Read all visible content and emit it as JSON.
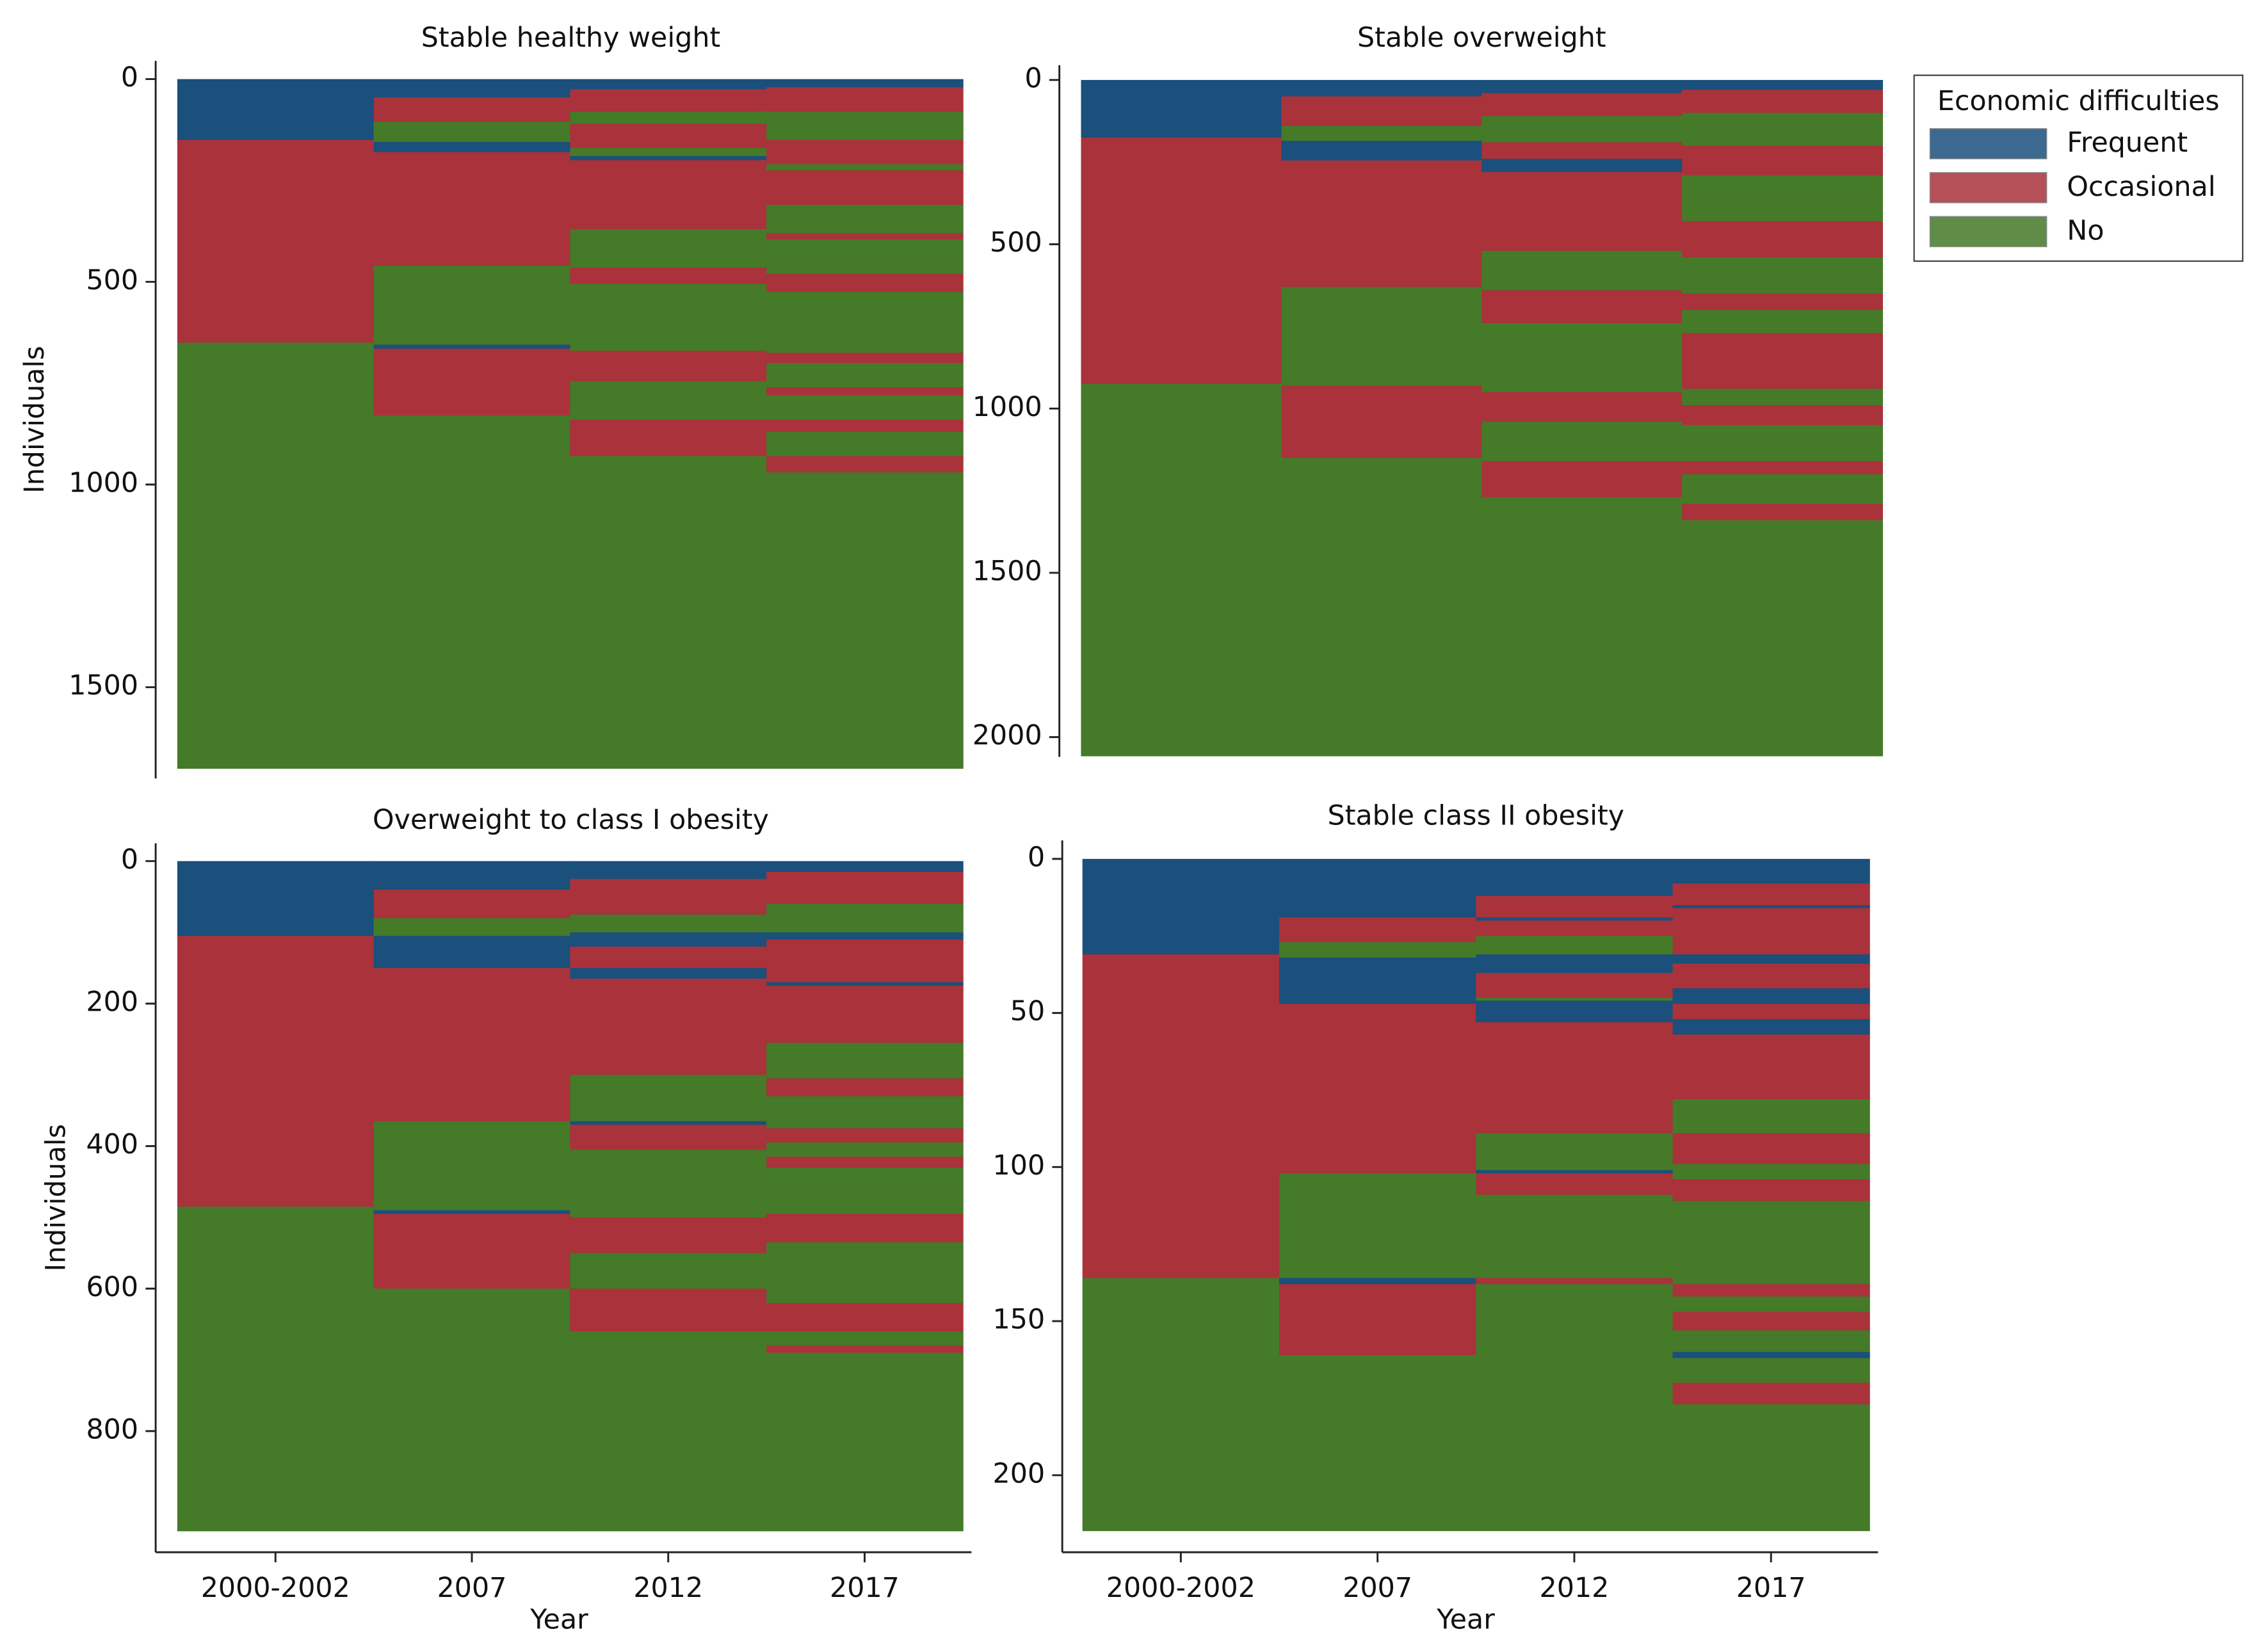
{
  "chart_data": {
    "type": "sequence-index",
    "legend_title": "Economic difficulties",
    "states": [
      {
        "name": "Frequent",
        "color": "#1b4f7c"
      },
      {
        "name": "Occasional",
        "color": "#a9323b"
      },
      {
        "name": "No",
        "color": "#447a28"
      }
    ],
    "panels": [
      {
        "title": "Stable healthy weight",
        "y_label": "Individuals",
        "ylim": [
          -45,
          1725
        ],
        "yticks": [
          0,
          500,
          1000,
          1500
        ],
        "columns": [
          {
            "states": [
              0,
              1,
              2
            ],
            "sizes": [
              150,
              500,
              1050
            ]
          },
          {
            "states": [
              0,
              1,
              2,
              0,
              1,
              2,
              0,
              1,
              2
            ],
            "sizes": [
              45,
              60,
              50,
              25,
              280,
              195,
              10,
              165,
              870
            ]
          },
          {
            "states": [
              0,
              1,
              2,
              1,
              2,
              0,
              1,
              2,
              1,
              2,
              1,
              2,
              1,
              2
            ],
            "sizes": [
              25,
              55,
              30,
              60,
              20,
              10,
              170,
              95,
              40,
              165,
              75,
              95,
              90,
              770
            ]
          },
          {
            "states": [
              0,
              1,
              2,
              1,
              2,
              1,
              2,
              1,
              2,
              1,
              2,
              1,
              2,
              1,
              2,
              1,
              2,
              1,
              2
            ],
            "sizes": [
              20,
              60,
              70,
              60,
              15,
              85,
              70,
              15,
              85,
              45,
              150,
              25,
              60,
              20,
              60,
              30,
              60,
              40,
              730
            ]
          }
        ]
      },
      {
        "title": "Stable overweight",
        "ylim": [
          -45,
          2060
        ],
        "yticks": [
          0,
          500,
          1000,
          1500,
          2000
        ],
        "columns": [
          {
            "states": [
              0,
              1,
              2
            ],
            "sizes": [
              175,
              750,
              1132
            ]
          },
          {
            "states": [
              0,
              1,
              2,
              0,
              1,
              2,
              1,
              2
            ],
            "sizes": [
              50,
              90,
              45,
              60,
              385,
              300,
              220,
              907
            ]
          },
          {
            "states": [
              0,
              1,
              2,
              1,
              0,
              1,
              2,
              1,
              2,
              1,
              2,
              1,
              2
            ],
            "sizes": [
              40,
              70,
              80,
              50,
              40,
              240,
              120,
              100,
              210,
              90,
              120,
              110,
              787
            ]
          },
          {
            "states": [
              0,
              1,
              2,
              1,
              2,
              1,
              2,
              1,
              2,
              1,
              2,
              1,
              2,
              1,
              2,
              1,
              2
            ],
            "sizes": [
              30,
              70,
              100,
              90,
              140,
              110,
              110,
              50,
              70,
              170,
              50,
              60,
              110,
              40,
              90,
              50,
              717
            ]
          }
        ]
      },
      {
        "title": "Overweight to class I obesity",
        "y_label": "Individuals",
        "x_label": "Year",
        "categories": [
          "2000-2002",
          "2007",
          "2012",
          "2017"
        ],
        "ylim": [
          -25,
          970
        ],
        "yticks": [
          0,
          200,
          400,
          600,
          800
        ],
        "columns": [
          {
            "states": [
              0,
              1,
              2
            ],
            "sizes": [
              105,
              380,
              455
            ]
          },
          {
            "states": [
              0,
              1,
              2,
              0,
              1,
              2,
              0,
              1,
              2
            ],
            "sizes": [
              40,
              40,
              25,
              45,
              215,
              125,
              5,
              105,
              340
            ]
          },
          {
            "states": [
              0,
              1,
              2,
              0,
              1,
              0,
              1,
              2,
              0,
              1,
              2,
              1,
              2,
              1,
              2
            ],
            "sizes": [
              25,
              50,
              25,
              20,
              30,
              15,
              135,
              65,
              5,
              35,
              95,
              50,
              50,
              60,
              280
            ]
          },
          {
            "states": [
              0,
              1,
              2,
              0,
              1,
              0,
              1,
              2,
              1,
              2,
              1,
              2,
              1,
              2,
              1,
              2,
              1,
              2,
              1,
              2
            ],
            "sizes": [
              15,
              45,
              40,
              10,
              60,
              5,
              80,
              50,
              25,
              45,
              20,
              20,
              15,
              65,
              40,
              85,
              40,
              20,
              10,
              250
            ]
          }
        ]
      },
      {
        "title": "Stable class II obesity",
        "x_label": "Year",
        "categories": [
          "2000-2002",
          "2007",
          "2012",
          "2017"
        ],
        "ylim": [
          -6,
          225
        ],
        "yticks": [
          0,
          50,
          100,
          150,
          200
        ],
        "columns": [
          {
            "states": [
              0,
              1,
              2
            ],
            "sizes": [
              31,
              105,
              82
            ]
          },
          {
            "states": [
              0,
              1,
              2,
              0,
              1,
              2,
              0,
              1,
              2
            ],
            "sizes": [
              19,
              8,
              5,
              15,
              55,
              34,
              2,
              23,
              57
            ]
          },
          {
            "states": [
              0,
              1,
              0,
              1,
              2,
              0,
              1,
              2,
              0,
              1,
              2,
              0,
              1,
              2,
              1,
              2
            ],
            "sizes": [
              12,
              7,
              1,
              5,
              6,
              6,
              8,
              1,
              7,
              36,
              12,
              1,
              7,
              27,
              2,
              80
            ]
          },
          {
            "states": [
              0,
              1,
              0,
              1,
              0,
              1,
              0,
              1,
              0,
              1,
              2,
              1,
              2,
              1,
              2,
              1,
              2,
              1,
              2,
              0,
              2,
              1,
              2
            ],
            "sizes": [
              8,
              7,
              1,
              15,
              3,
              8,
              5,
              5,
              5,
              21,
              11,
              10,
              5,
              7,
              27,
              4,
              5,
              6,
              7,
              2,
              8,
              7,
              41
            ]
          }
        ]
      }
    ]
  }
}
